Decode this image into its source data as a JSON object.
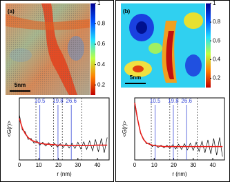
{
  "panels": [
    {
      "label": "(a)",
      "scale_bar": "5nm",
      "colorbar": {
        "lim": [
          0.1,
          1
        ],
        "ticks": [
          1,
          0.8,
          0.6,
          0.4,
          0.2
        ]
      },
      "chart_data": {
        "type": "line",
        "x_label": "r (nm)",
        "y_label": "<G(r)>",
        "xlim": [
          0,
          46
        ],
        "ylim": [
          -0.25,
          1.05
        ],
        "xticks": [
          0,
          10,
          20,
          30,
          40
        ],
        "marked_distances": [
          10.5,
          19.8,
          26.6
        ],
        "marked_color": "#3a4bd8",
        "dashed_distances": [
          8.5,
          17.5,
          22,
          32
        ],
        "x": [
          0,
          1.5,
          3,
          4.5,
          6,
          7.5,
          9,
          10.5,
          12,
          13.5,
          15,
          16.5,
          18,
          19.5,
          21,
          22.5,
          24,
          25.5,
          27,
          28.5,
          30,
          31.5,
          33,
          34.5,
          36,
          37.5,
          39,
          40.5,
          42,
          43.5,
          45
        ],
        "series": [
          {
            "color": "#000000",
            "values": [
              0.7,
              0.38,
              0.34,
              0.18,
              0.2,
              0.1,
              0.15,
              0.06,
              0.12,
              0.04,
              0.11,
              0.03,
              0.1,
              0.02,
              0.09,
              0.01,
              0.1,
              0.0,
              0.1,
              -0.01,
              0.12,
              -0.02,
              0.13,
              -0.03,
              0.15,
              -0.06,
              0.18,
              -0.08,
              0.2,
              -0.1,
              0.22
            ]
          },
          {
            "color": "#e8201c",
            "values": [
              0.62,
              0.42,
              0.3,
              0.22,
              0.17,
              0.14,
              0.12,
              0.1,
              0.09,
              0.08,
              0.08,
              0.07,
              0.07,
              0.06,
              0.06,
              0.06,
              0.05,
              0.05,
              0.05,
              0.05,
              0.05,
              0.05,
              0.05,
              0.05,
              0.05,
              0.05,
              0.06,
              0.06,
              0.06,
              0.06,
              0.06
            ]
          }
        ]
      }
    },
    {
      "label": "(b)",
      "scale_bar": "5nm",
      "colorbar": {
        "lim": [
          0.1,
          1
        ],
        "ticks": [
          1,
          0.8,
          0.6,
          0.4,
          0.2
        ]
      },
      "chart_data": {
        "type": "line",
        "x_label": "r (nm)",
        "y_label": "<G(r)>",
        "xlim": [
          0,
          46
        ],
        "ylim": [
          -0.25,
          1.05
        ],
        "xticks": [
          0,
          10,
          20,
          30,
          40
        ],
        "marked_distances": [
          10.5,
          19.8,
          26.6
        ],
        "marked_color": "#3a4bd8",
        "dashed_distances": [
          8.5,
          18,
          22,
          32
        ],
        "x": [
          0,
          1.5,
          3,
          4.5,
          6,
          7.5,
          9,
          10.5,
          12,
          13.5,
          15,
          16.5,
          18,
          19.5,
          21,
          22.5,
          24,
          25.5,
          27,
          28.5,
          30,
          31.5,
          33,
          34.5,
          36,
          37.5,
          39,
          40.5,
          42,
          43.5,
          45
        ],
        "series": [
          {
            "color": "#000000",
            "values": [
              0.98,
              0.62,
              0.3,
              0.2,
              0.09,
              0.1,
              0.03,
              0.07,
              0.01,
              0.06,
              0.0,
              0.06,
              -0.01,
              0.07,
              -0.02,
              0.08,
              -0.03,
              0.09,
              -0.04,
              0.1,
              -0.05,
              0.12,
              -0.07,
              0.14,
              -0.1,
              0.17,
              -0.12,
              0.2,
              -0.15,
              0.22,
              -0.18
            ]
          },
          {
            "color": "#e8201c",
            "values": [
              0.95,
              0.6,
              0.32,
              0.18,
              0.11,
              0.08,
              0.06,
              0.05,
              0.04,
              0.04,
              0.03,
              0.03,
              0.03,
              0.03,
              0.03,
              0.03,
              0.03,
              0.03,
              0.03,
              0.03,
              0.03,
              0.03,
              0.03,
              0.03,
              0.03,
              0.03,
              0.03,
              0.03,
              0.03,
              0.03,
              0.03
            ]
          }
        ]
      }
    }
  ]
}
